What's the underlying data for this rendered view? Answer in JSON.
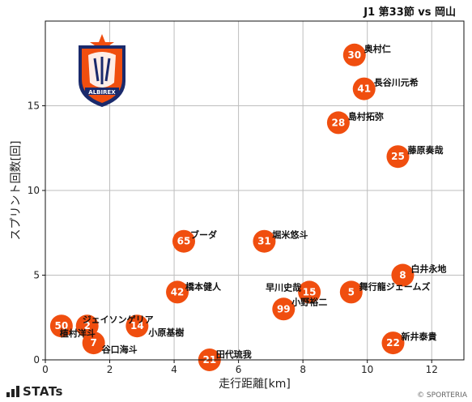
{
  "header": {
    "title": "J1 第33節 vs 岡山"
  },
  "branding": {
    "logo_icon": "albirex-niigata-crest-icon",
    "stats_label": "STATs",
    "copyright": "© SPORTERIA"
  },
  "colors": {
    "point": "#f04e0f",
    "grid": "#bdbdbd"
  },
  "chart_data": {
    "type": "scatter",
    "title": "J1 第33節 vs 岡山",
    "xlabel": "走行距離[km]",
    "ylabel": "スプリント回数[回]",
    "xlim": [
      0,
      13
    ],
    "ylim": [
      0,
      20
    ],
    "xticks": [
      0,
      2,
      4,
      6,
      8,
      10,
      12
    ],
    "yticks": [
      0,
      5,
      10,
      15
    ],
    "grid": true,
    "points": [
      {
        "num": "30",
        "name": "奥村仁",
        "x": 9.6,
        "y": 18
      },
      {
        "num": "41",
        "name": "長谷川元希",
        "x": 9.9,
        "y": 16
      },
      {
        "num": "28",
        "name": "島村拓弥",
        "x": 9.1,
        "y": 14
      },
      {
        "num": "25",
        "name": "藤原奏哉",
        "x": 10.95,
        "y": 12
      },
      {
        "num": "65",
        "name": "ブーダ",
        "x": 4.3,
        "y": 7
      },
      {
        "num": "31",
        "name": "堀米悠斗",
        "x": 6.8,
        "y": 7
      },
      {
        "num": "8",
        "name": "白井永地",
        "x": 11.1,
        "y": 5
      },
      {
        "num": "42",
        "name": "橋本健人",
        "x": 4.1,
        "y": 4
      },
      {
        "num": "15",
        "name": "早川史哉",
        "x": 8.2,
        "y": 4
      },
      {
        "num": "5",
        "name": "舞行龍ジェームズ",
        "x": 9.5,
        "y": 4
      },
      {
        "num": "99",
        "name": "小野裕二",
        "x": 7.4,
        "y": 3
      },
      {
        "num": "50",
        "name": "植村洋斗",
        "x": 0.5,
        "y": 2
      },
      {
        "num": "2",
        "name": "ジェイソンゲリア",
        "x": 1.3,
        "y": 2
      },
      {
        "num": "14",
        "name": "小原基樹",
        "x": 2.85,
        "y": 2
      },
      {
        "num": "7",
        "name": "谷口海斗",
        "x": 1.5,
        "y": 1
      },
      {
        "num": "22",
        "name": "新井泰貴",
        "x": 10.8,
        "y": 1
      },
      {
        "num": "21",
        "name": "田代琉我",
        "x": 5.1,
        "y": 0
      }
    ]
  }
}
